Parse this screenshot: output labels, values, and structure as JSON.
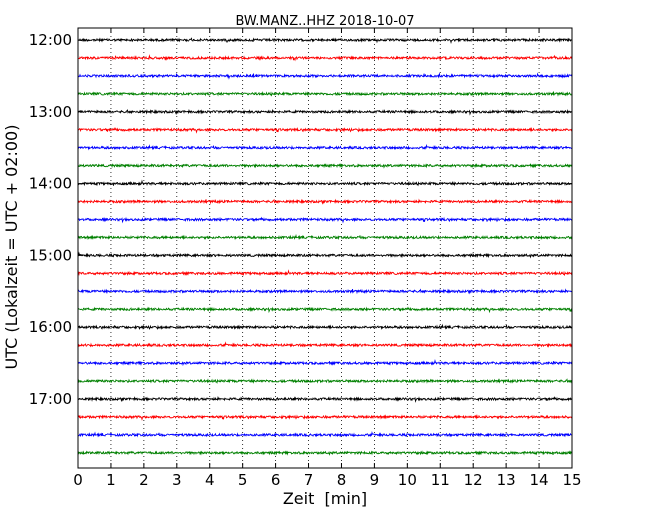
{
  "chart_data": {
    "type": "line",
    "title": "BW.MANZ..HHZ 2018-10-07",
    "xlabel": "Zeit  [min]",
    "ylabel": "UTC (Lokalzeit = UTC + 02:00)",
    "xlim": [
      0,
      15
    ],
    "x_ticks": [
      "0",
      "1",
      "2",
      "3",
      "4",
      "5",
      "6",
      "7",
      "8",
      "9",
      "10",
      "11",
      "12",
      "13",
      "14",
      "15"
    ],
    "y_tick_labels": [
      "12:00",
      "13:00",
      "14:00",
      "15:00",
      "16:00",
      "17:00"
    ],
    "grid": "vertical dotted at each minute",
    "trace_colors": [
      "#000000",
      "#ff0000",
      "#0000ff",
      "#008000"
    ],
    "traces": [
      {
        "start": "12:00"
      },
      {
        "start": "12:15"
      },
      {
        "start": "12:30"
      },
      {
        "start": "12:45"
      },
      {
        "start": "13:00"
      },
      {
        "start": "13:15"
      },
      {
        "start": "13:30"
      },
      {
        "start": "13:45"
      },
      {
        "start": "14:00"
      },
      {
        "start": "14:15"
      },
      {
        "start": "14:30"
      },
      {
        "start": "14:45"
      },
      {
        "start": "15:00"
      },
      {
        "start": "15:15"
      },
      {
        "start": "15:30"
      },
      {
        "start": "15:45"
      },
      {
        "start": "16:00"
      },
      {
        "start": "16:15"
      },
      {
        "start": "16:30"
      },
      {
        "start": "16:45"
      },
      {
        "start": "17:00"
      },
      {
        "start": "17:15"
      },
      {
        "start": "17:30"
      },
      {
        "start": "17:45"
      }
    ]
  }
}
